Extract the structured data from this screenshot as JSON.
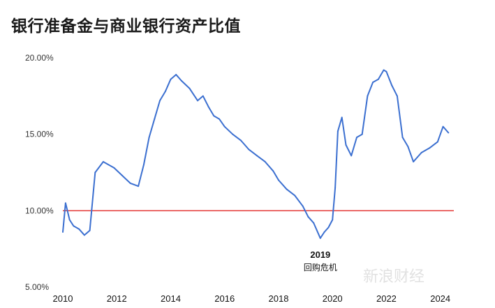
{
  "chart_data": {
    "type": "line",
    "title": "银行准备金与商业银行资产比值",
    "y_ticks": [
      "20.00%",
      "15.00%",
      "10.00%",
      "5.00%"
    ],
    "x_ticks": [
      "2010",
      "2012",
      "2014",
      "2016",
      "2018",
      "2020",
      "2022",
      "2024"
    ],
    "ylim": [
      5,
      20
    ],
    "xlim": [
      2010,
      2024.5
    ],
    "reference_line": {
      "y": 10,
      "color": "#e53935"
    },
    "series": [
      {
        "color": "#3b6fd0",
        "x": [
          2010.0,
          2010.1,
          2010.25,
          2010.4,
          2010.6,
          2010.8,
          2011.0,
          2011.2,
          2011.5,
          2011.9,
          2012.2,
          2012.5,
          2012.8,
          2013.0,
          2013.2,
          2013.4,
          2013.6,
          2013.8,
          2014.0,
          2014.2,
          2014.4,
          2014.7,
          2015.0,
          2015.2,
          2015.4,
          2015.6,
          2015.8,
          2016.0,
          2016.3,
          2016.6,
          2016.9,
          2017.2,
          2017.5,
          2017.8,
          2018.0,
          2018.3,
          2018.6,
          2018.9,
          2019.1,
          2019.3,
          2019.55,
          2019.7,
          2019.85,
          2020.0,
          2020.1,
          2020.2,
          2020.35,
          2020.5,
          2020.7,
          2020.9,
          2021.1,
          2021.3,
          2021.5,
          2021.7,
          2021.9,
          2022.0,
          2022.2,
          2022.4,
          2022.6,
          2022.8,
          2023.0,
          2023.3,
          2023.6,
          2023.9,
          2024.1,
          2024.3
        ],
        "values": [
          8.6,
          10.5,
          9.4,
          9.0,
          8.8,
          8.4,
          8.7,
          12.5,
          13.2,
          12.8,
          12.3,
          11.8,
          11.6,
          13.0,
          14.8,
          16.0,
          17.2,
          17.8,
          18.6,
          18.9,
          18.5,
          18.0,
          17.2,
          17.5,
          16.8,
          16.2,
          16.0,
          15.5,
          15.0,
          14.6,
          14.0,
          13.6,
          13.2,
          12.6,
          12.0,
          11.4,
          11.0,
          10.3,
          9.6,
          9.2,
          8.2,
          8.6,
          8.9,
          9.4,
          11.5,
          15.2,
          16.1,
          14.3,
          13.6,
          14.8,
          15.0,
          17.5,
          18.4,
          18.6,
          19.2,
          19.1,
          18.2,
          17.5,
          14.8,
          14.2,
          13.2,
          13.8,
          14.1,
          14.5,
          15.5,
          15.1
        ]
      }
    ],
    "annotation": {
      "year": "2019",
      "label": "回购危机"
    }
  },
  "watermark": "新浪财经"
}
